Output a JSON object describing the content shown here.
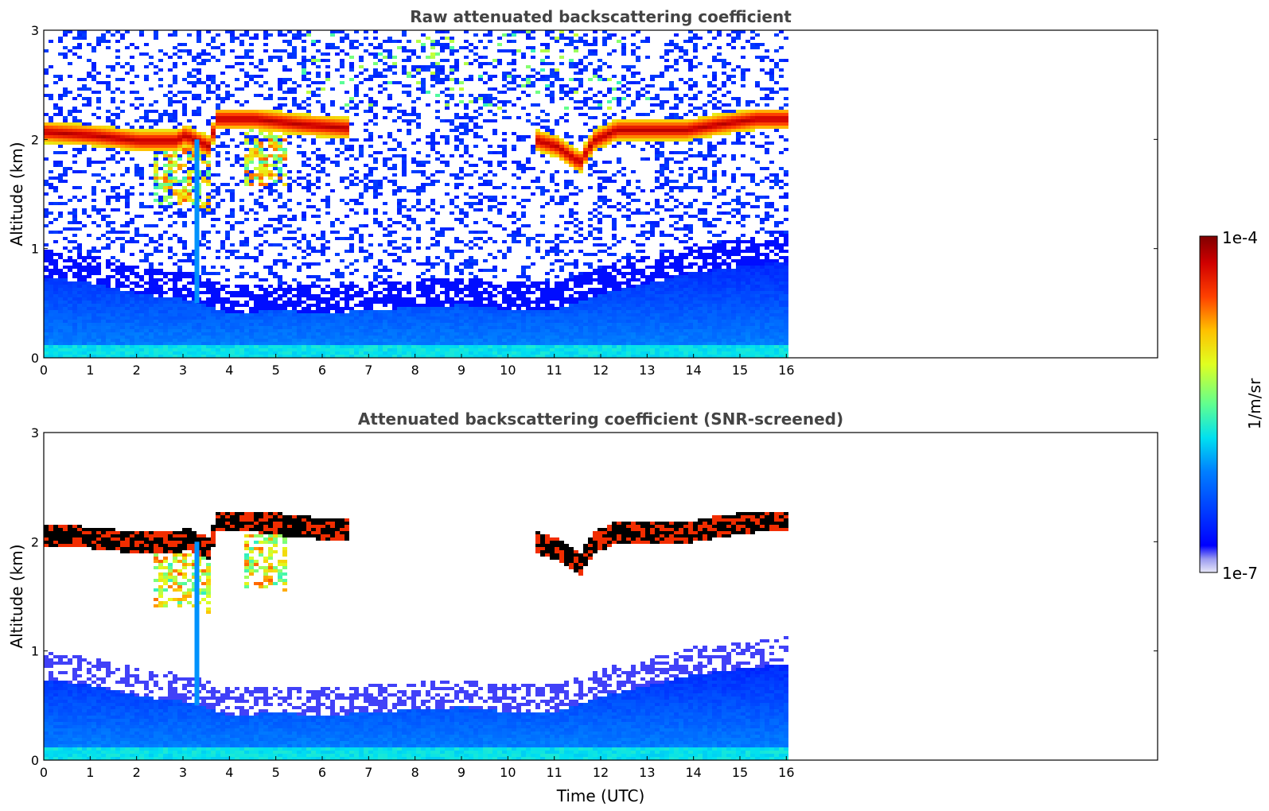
{
  "chart_data": [
    {
      "type": "heatmap",
      "title": "Raw attenuated backscattering coefficient",
      "ylabel": "Altitude (km)",
      "xlabel": "",
      "xlim": [
        0,
        24
      ],
      "ylim": [
        0,
        3
      ],
      "xticks": [
        "0",
        "1",
        "2",
        "3",
        "4",
        "5",
        "6",
        "7",
        "8",
        "9",
        "10",
        "11",
        "12",
        "13",
        "14",
        "15",
        "16"
      ],
      "yticks": [
        "0",
        "1",
        "2",
        "3"
      ],
      "data_end_time": 16,
      "cloud_layer_top": [
        [
          0,
          2.08
        ],
        [
          1,
          2.05
        ],
        [
          2,
          2.0
        ],
        [
          2.8,
          2.0
        ],
        [
          3.0,
          2.05
        ],
        [
          3.5,
          1.95
        ],
        [
          3.7,
          2.2
        ],
        [
          4.5,
          2.2
        ],
        [
          5.5,
          2.15
        ],
        [
          6.4,
          2.12
        ],
        [
          10.6,
          2.0
        ],
        [
          11.0,
          1.95
        ],
        [
          11.5,
          1.8
        ],
        [
          11.8,
          2.0
        ],
        [
          12.3,
          2.1
        ],
        [
          13.0,
          2.1
        ],
        [
          13.8,
          2.1
        ],
        [
          14.5,
          2.15
        ],
        [
          15.3,
          2.2
        ],
        [
          16,
          2.2
        ]
      ],
      "boundary_layer_top": [
        [
          0,
          0.75
        ],
        [
          1,
          0.7
        ],
        [
          2,
          0.6
        ],
        [
          3,
          0.55
        ],
        [
          4,
          0.42
        ],
        [
          5,
          0.45
        ],
        [
          6,
          0.42
        ],
        [
          7,
          0.45
        ],
        [
          8,
          0.48
        ],
        [
          9,
          0.5
        ],
        [
          10,
          0.45
        ],
        [
          11,
          0.45
        ],
        [
          12,
          0.6
        ],
        [
          13,
          0.7
        ],
        [
          14,
          0.8
        ],
        [
          15,
          0.85
        ],
        [
          16,
          0.9
        ]
      ]
    },
    {
      "type": "heatmap",
      "title": "Attenuated backscattering coefficient (SNR-screened)",
      "ylabel": "Altitude (km)",
      "xlabel": "Time (UTC)",
      "xlim": [
        0,
        24
      ],
      "ylim": [
        0,
        3
      ],
      "xticks": [
        "0",
        "1",
        "2",
        "3",
        "4",
        "5",
        "6",
        "7",
        "8",
        "9",
        "10",
        "11",
        "12",
        "13",
        "14",
        "15",
        "16"
      ],
      "yticks": [
        "0",
        "1",
        "2",
        "3"
      ],
      "data_end_time": 16
    }
  ],
  "colorbar": {
    "label": "1/m/sr",
    "max_label": "1e-4",
    "min_label": "1e-7",
    "colormap": "jet"
  }
}
